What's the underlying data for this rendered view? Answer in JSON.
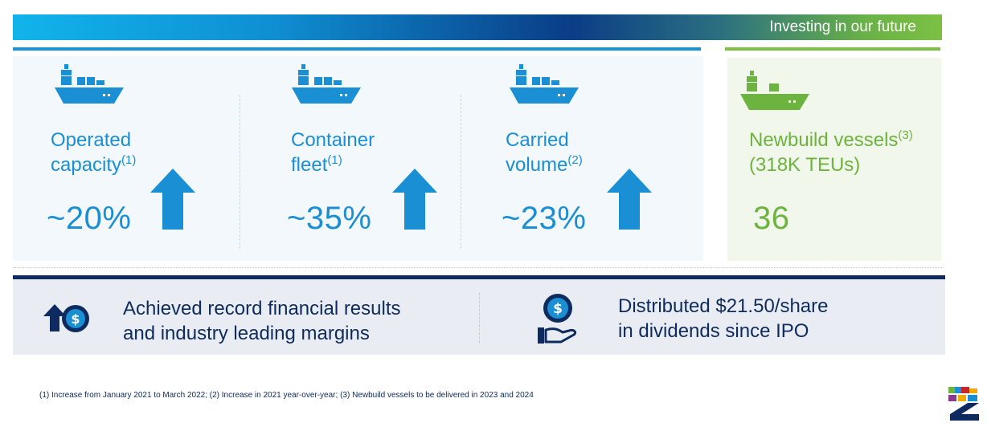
{
  "header": {
    "title": "Investing in our future"
  },
  "stats": [
    {
      "label_line1": "Operated",
      "label_line2": "capacity",
      "footnote_marker": "(1)",
      "value": "~20%",
      "trend": "up"
    },
    {
      "label_line1": "Container",
      "label_line2": "fleet",
      "footnote_marker": "(1)",
      "value": "~35%",
      "trend": "up"
    },
    {
      "label_line1": "Carried",
      "label_line2": "volume",
      "footnote_marker": "(2)",
      "value": "~23%",
      "trend": "up"
    }
  ],
  "newbuild": {
    "label_line1": "Newbuild vessels",
    "footnote_marker": "(3)",
    "label_line2": "(318K TEUs)",
    "value": "36"
  },
  "highlights": [
    {
      "line1": "Achieved record financial results",
      "line2": "and industry leading margins",
      "icon": "dollar-up-arrow-icon"
    },
    {
      "line1": "Distributed $21.50/share",
      "line2": "in dividends since IPO",
      "icon": "dollar-coin-hand-icon"
    }
  ],
  "footnote": "(1) Increase from January 2021 to March 2022; (2) Increase in 2021 year-over-year; (3) Newbuild vessels to be delivered in 2023 and 2024",
  "colors": {
    "blue": "#1b8fd3",
    "green": "#6db33f",
    "navy": "#0d2b5e"
  }
}
